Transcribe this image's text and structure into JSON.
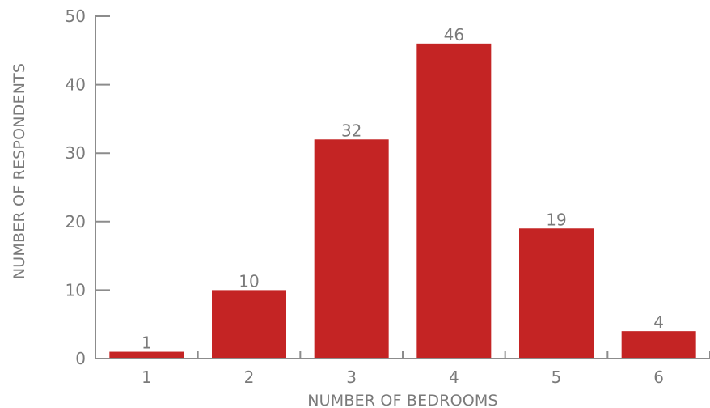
{
  "chart_data": {
    "type": "bar",
    "categories": [
      "1",
      "2",
      "3",
      "4",
      "5",
      "6"
    ],
    "values": [
      1,
      10,
      32,
      46,
      19,
      4
    ],
    "xlabel": "NUMBER OF BEDROOMS",
    "ylabel": "NUMBER OF RESPONDENTS",
    "ylim": [
      0,
      50
    ],
    "yticks": [
      0,
      10,
      20,
      30,
      40,
      50
    ],
    "data_labels": true,
    "grid": false,
    "legend": "none",
    "colors": {
      "bar": "#c42424",
      "axis": "#8c8c8c",
      "text": "#7a7a7a"
    }
  }
}
